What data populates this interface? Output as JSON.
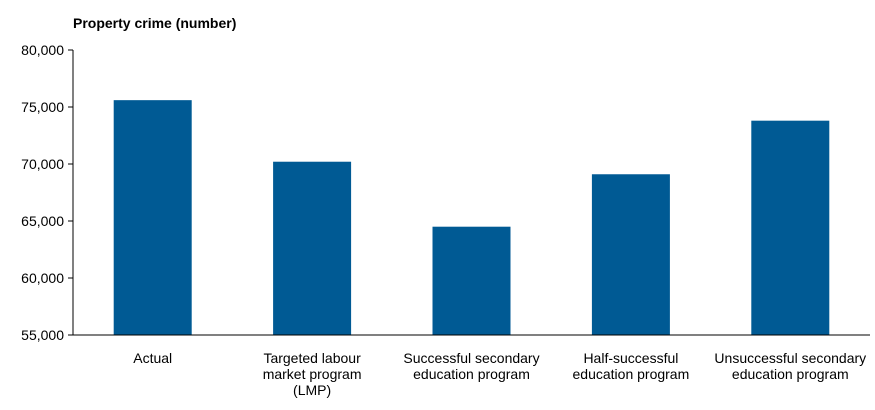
{
  "chart_data": {
    "type": "bar",
    "title": "",
    "xlabel": "",
    "ylabel": "Property crime (number)",
    "categories": [
      "Actual",
      "Targeted labour market program (LMP)",
      "Successful secondary education program",
      "Half-successful education program",
      "Unsuccessful secondary education program"
    ],
    "category_lines": [
      [
        "Actual"
      ],
      [
        "Targeted labour",
        "market program",
        "(LMP)"
      ],
      [
        "Successful secondary",
        "education program"
      ],
      [
        "Half-successful",
        "education program"
      ],
      [
        "Unsuccessful secondary",
        "education program"
      ]
    ],
    "values": [
      75600,
      70200,
      64500,
      69100,
      73800
    ],
    "ylim": [
      55000,
      80000
    ],
    "yticks": [
      55000,
      60000,
      65000,
      70000,
      75000,
      80000
    ],
    "ytick_labels": [
      "55,000",
      "60,000",
      "65,000",
      "70,000",
      "75,000",
      "80,000"
    ],
    "grid": false,
    "bar_color": "#005A94"
  }
}
